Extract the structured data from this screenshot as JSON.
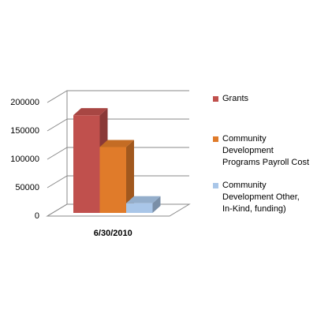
{
  "chart_data": {
    "type": "bar3d",
    "categories": [
      "6/30/2010"
    ],
    "series": [
      {
        "name": "Grants",
        "color": "#c0504d",
        "values": [
          172000
        ]
      },
      {
        "name": "Community Development Programs Payroll Cost",
        "color": "#e07b2a",
        "values": [
          116000
        ]
      },
      {
        "name": "Community Development Other, In-Kind, funding)",
        "color": "#a9c6e8",
        "values": [
          17000
        ]
      }
    ],
    "ylim": [
      0,
      200000
    ],
    "yticks": [
      0,
      50000,
      100000,
      150000,
      200000
    ],
    "grid": true,
    "legend": "right"
  }
}
